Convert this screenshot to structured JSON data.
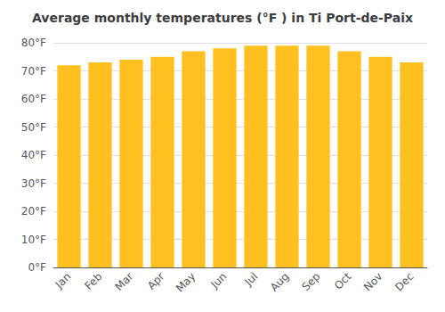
{
  "chart_data": {
    "type": "bar",
    "title": "Average monthly temperatures (°F ) in Ti Port-de-Paix",
    "categories": [
      "Jan",
      "Feb",
      "Mar",
      "Apr",
      "May",
      "Jun",
      "Jul",
      "Aug",
      "Sep",
      "Oct",
      "Nov",
      "Dec"
    ],
    "values": [
      72,
      73,
      74,
      75,
      77,
      78,
      79,
      79,
      79,
      77,
      75,
      73
    ],
    "color": "#FFC020",
    "ylim": [
      0,
      80
    ],
    "yticks": [
      {
        "value": 0,
        "label": "0°F"
      },
      {
        "value": 10,
        "label": "10°F"
      },
      {
        "value": 20,
        "label": "20°F"
      },
      {
        "value": 30,
        "label": "30°F"
      },
      {
        "value": 40,
        "label": "40°F"
      },
      {
        "value": 50,
        "label": "50°F"
      },
      {
        "value": 60,
        "label": "60°F"
      },
      {
        "value": 70,
        "label": "70°F"
      },
      {
        "value": 80,
        "label": "80°F"
      }
    ],
    "grid": true
  }
}
